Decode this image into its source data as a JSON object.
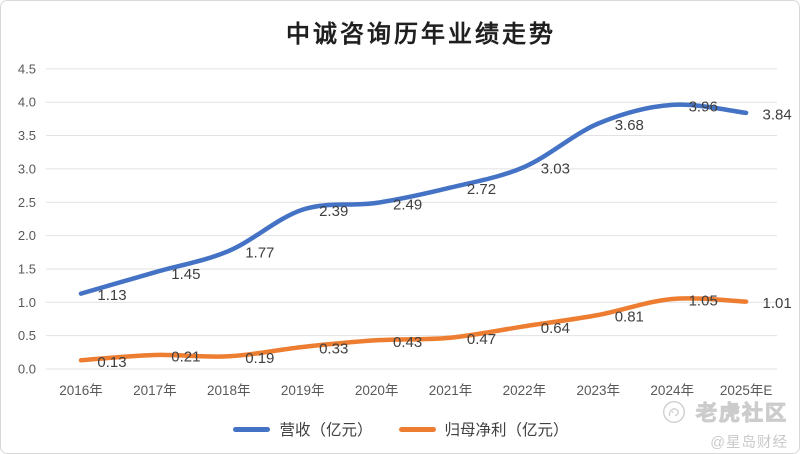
{
  "title": "中诚咨询历年业绩走势",
  "colors": {
    "revenue": "#4472C4",
    "profit": "#ED7D31",
    "grid": "#e2e2e2",
    "axis_text": "#595959",
    "label_text": "#3f3f3f",
    "border": "#d9d9d9"
  },
  "chart_data": {
    "type": "line",
    "title": "中诚咨询历年业绩走势",
    "categories": [
      "2016年",
      "2017年",
      "2018年",
      "2019年",
      "2020年",
      "2021年",
      "2022年",
      "2023年",
      "2024年",
      "2025年E"
    ],
    "series": [
      {
        "key": "revenue",
        "name": "营收（亿元）",
        "color": "#4472C4",
        "values": [
          1.13,
          1.45,
          1.77,
          2.39,
          2.49,
          2.72,
          3.03,
          3.68,
          3.96,
          3.84
        ]
      },
      {
        "key": "profit",
        "name": "归母净利（亿元）",
        "color": "#ED7D31",
        "values": [
          0.13,
          0.21,
          0.19,
          0.33,
          0.43,
          0.47,
          0.64,
          0.81,
          1.05,
          1.01
        ]
      }
    ],
    "xlabel": "",
    "ylabel": "",
    "ylim": [
      0,
      4.5
    ],
    "ytick_step": 0.5,
    "ytick_format_decimals": 1,
    "grid": true,
    "smoothed": true,
    "data_labels": true,
    "legend_position": "bottom"
  },
  "legend": {
    "items": [
      {
        "label": "营收（亿元）",
        "color": "#4472C4"
      },
      {
        "label": "归母净利（亿元）",
        "color": "#ED7D31"
      }
    ]
  },
  "watermark": {
    "icon": "tiger-circle-icon",
    "community": "老虎社区",
    "account": "@星岛财经"
  }
}
